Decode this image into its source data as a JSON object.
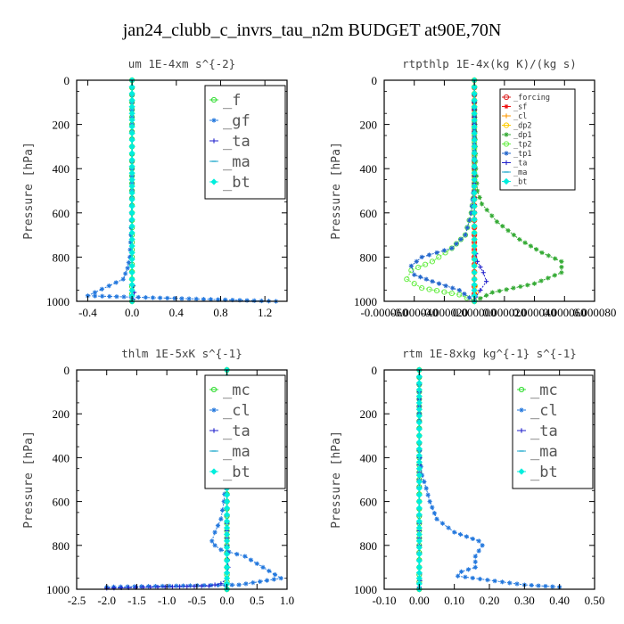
{
  "figure_title": "jan24_clubb_c_invrs_tau_n2m  BUDGET at90E,70N",
  "chart_data": [
    {
      "type": "line",
      "title": "um   1E-4xm s^{-2}",
      "ylabel": "Pressure [hPa]",
      "xlim": [
        -0.5,
        1.4
      ],
      "ylim": [
        1000,
        0
      ],
      "xticks": [
        "-0.4",
        "0.0",
        "0.4",
        "0.8",
        "1.2"
      ],
      "xtick_values": [
        -0.4,
        0.0,
        0.4,
        0.8,
        1.2
      ],
      "yticks": [
        "0",
        "200",
        "400",
        "600",
        "800",
        "1000"
      ],
      "legend_style": "big",
      "series": [
        {
          "name": "_f",
          "color": "#33dd33",
          "marker": "circle",
          "x": [
            0,
            0,
            0,
            0,
            0,
            0,
            0,
            0,
            0,
            0,
            0
          ],
          "y": [
            0,
            100,
            200,
            300,
            400,
            500,
            600,
            700,
            800,
            900,
            1000
          ]
        },
        {
          "name": "_gf",
          "color": "#2277dd",
          "marker": "star",
          "x": [
            0,
            0,
            0,
            0,
            0,
            0,
            -0.01,
            -0.02,
            -0.04,
            -0.08,
            -0.4,
            1.3
          ],
          "y": [
            0,
            100,
            200,
            300,
            400,
            500,
            700,
            800,
            850,
            900,
            975,
            1000
          ]
        },
        {
          "name": "_ta",
          "color": "#2222cc",
          "marker": "plus",
          "x": [
            0,
            0,
            0,
            0,
            0,
            0,
            0,
            0.02,
            0.01,
            0
          ],
          "y": [
            0,
            150,
            300,
            450,
            600,
            750,
            900,
            960,
            990,
            1000
          ]
        },
        {
          "name": "_ma",
          "color": "#22aacc",
          "marker": "dash",
          "x": [
            0,
            0,
            0,
            0,
            0,
            0,
            0,
            0,
            0
          ],
          "y": [
            0,
            150,
            300,
            450,
            600,
            750,
            900,
            950,
            1000
          ]
        },
        {
          "name": "_bt",
          "color": "#00eedd",
          "marker": "diamond",
          "x": [
            0,
            0,
            0,
            0,
            0,
            0,
            0,
            0,
            0
          ],
          "y": [
            0,
            150,
            300,
            450,
            600,
            750,
            900,
            950,
            1000
          ]
        }
      ]
    },
    {
      "type": "line",
      "title": "rtpthlp   1E-4x(kg K)/(kg s)",
      "ylabel": "Pressure [hPa]",
      "xlim": [
        -6e-05,
        8e-05
      ],
      "ylim": [
        1000,
        0
      ],
      "xticks": [
        "-0.000060",
        "-0.000040",
        "-0.000020",
        "0.000000",
        "0.000020",
        "0.000040",
        "0.000060",
        "0.000080"
      ],
      "xtick_values": [
        -6e-05,
        -4e-05,
        -2e-05,
        0,
        2e-05,
        4e-05,
        6e-05,
        8e-05
      ],
      "yticks": [
        "0",
        "200",
        "400",
        "600",
        "800",
        "1000"
      ],
      "legend_style": "small",
      "series": [
        {
          "name": "_forcing",
          "color": "#dd2222",
          "marker": "circle",
          "x": [
            0,
            0,
            0,
            0,
            0,
            0,
            0,
            0,
            0,
            0,
            0
          ],
          "y": [
            0,
            100,
            200,
            300,
            400,
            500,
            600,
            700,
            800,
            900,
            1000
          ]
        },
        {
          "name": "_sf",
          "color": "#ee1111",
          "marker": "star",
          "x": [
            0,
            0,
            0,
            0,
            0,
            0,
            0,
            0,
            0,
            0,
            0
          ],
          "y": [
            0,
            100,
            200,
            300,
            400,
            500,
            600,
            700,
            800,
            900,
            1000
          ]
        },
        {
          "name": "_cl",
          "color": "#ff9900",
          "marker": "plus",
          "x": [
            0,
            0,
            0,
            0,
            0,
            0,
            0,
            0,
            0,
            0
          ],
          "y": [
            0,
            150,
            300,
            450,
            600,
            750,
            900,
            950,
            990,
            1000
          ]
        },
        {
          "name": "_dp2",
          "color": "#ffcc00",
          "marker": "circle",
          "x": [
            0,
            0,
            0,
            0,
            0,
            0,
            0,
            1e-06,
            0
          ],
          "y": [
            0,
            150,
            300,
            450,
            600,
            750,
            900,
            960,
            1000
          ]
        },
        {
          "name": "_dp1",
          "color": "#33aa33",
          "marker": "star",
          "x": [
            0,
            1e-06,
            2e-06,
            5e-06,
            1.5e-05,
            3e-05,
            4.5e-05,
            5.8e-05,
            5.8e-05,
            4e-05,
            1.2e-05,
            0
          ],
          "y": [
            0,
            400,
            500,
            560,
            640,
            720,
            780,
            820,
            870,
            920,
            960,
            1000
          ]
        },
        {
          "name": "_tp2",
          "color": "#66ee44",
          "marker": "circle",
          "x": [
            0,
            0,
            -2e-06,
            -6e-06,
            -1.5e-05,
            -2.8e-05,
            -4.2e-05,
            -4.5e-05,
            -3.5e-05,
            -1e-05,
            0
          ],
          "y": [
            0,
            500,
            600,
            700,
            760,
            820,
            860,
            900,
            940,
            970,
            1000
          ]
        },
        {
          "name": "_tp1",
          "color": "#2266cc",
          "marker": "star",
          "x": [
            0,
            0,
            -2e-06,
            -6e-06,
            -1.5e-05,
            -3.5e-05,
            -4.2e-05,
            -4e-05,
            -2.8e-05,
            -1e-05,
            0
          ],
          "y": [
            0,
            450,
            600,
            700,
            760,
            800,
            840,
            880,
            910,
            950,
            1000
          ]
        },
        {
          "name": "_ta",
          "color": "#2222cc",
          "marker": "plus",
          "x": [
            0,
            0,
            0,
            0,
            2e-06,
            6e-06,
            8e-06,
            4e-06,
            1e-06,
            0
          ],
          "y": [
            0,
            200,
            500,
            750,
            820,
            870,
            910,
            950,
            980,
            1000
          ]
        },
        {
          "name": "_ma",
          "color": "#22aacc",
          "marker": "dash",
          "x": [
            0,
            0,
            0,
            0,
            0,
            0,
            0,
            0,
            0
          ],
          "y": [
            0,
            150,
            300,
            450,
            600,
            750,
            900,
            950,
            1000
          ]
        },
        {
          "name": "_bt",
          "color": "#00eedd",
          "marker": "diamond",
          "x": [
            0,
            0,
            0,
            0,
            0,
            0,
            0,
            0,
            0
          ],
          "y": [
            0,
            150,
            300,
            450,
            600,
            750,
            900,
            950,
            1000
          ]
        }
      ]
    },
    {
      "type": "line",
      "title": "thlm   1E-5xK s^{-1}",
      "ylabel": "Pressure [hPa]",
      "xlim": [
        -2.5,
        1.0
      ],
      "ylim": [
        1000,
        0
      ],
      "xticks": [
        "-2.5",
        "-2.0",
        "-1.5",
        "-1.0",
        "-0.5",
        "0.0",
        "0.5",
        "1.0"
      ],
      "xtick_values": [
        -2.5,
        -2.0,
        -1.5,
        -1.0,
        -0.5,
        0.0,
        0.5,
        1.0
      ],
      "yticks": [
        "0",
        "200",
        "400",
        "600",
        "800",
        "1000"
      ],
      "legend_style": "big",
      "series": [
        {
          "name": "_mc",
          "color": "#33dd33",
          "marker": "circle",
          "x": [
            0,
            0,
            0,
            0,
            0,
            0,
            0,
            0,
            0,
            0,
            0
          ],
          "y": [
            0,
            100,
            200,
            300,
            400,
            500,
            600,
            700,
            800,
            900,
            1000
          ]
        },
        {
          "name": "_cl",
          "color": "#2277dd",
          "marker": "star",
          "x": [
            0,
            0,
            0,
            -0.02,
            -0.05,
            -0.1,
            -0.2,
            -0.25,
            -0.2,
            -0.1,
            0.3,
            0.6,
            0.9,
            0.2,
            -2.0
          ],
          "y": [
            0,
            200,
            400,
            500,
            600,
            680,
            740,
            780,
            800,
            820,
            850,
            900,
            950,
            980,
            990
          ]
        },
        {
          "name": "_ta",
          "color": "#2222cc",
          "marker": "plus",
          "x": [
            0,
            0,
            0,
            0,
            0,
            0.02,
            0,
            -0.1,
            -0.3,
            -2.0
          ],
          "y": [
            0,
            200,
            400,
            600,
            800,
            900,
            950,
            975,
            985,
            995
          ]
        },
        {
          "name": "_ma",
          "color": "#22aacc",
          "marker": "dash",
          "x": [
            0,
            0,
            0,
            0,
            0,
            0,
            0,
            0,
            0
          ],
          "y": [
            0,
            150,
            300,
            450,
            600,
            750,
            900,
            950,
            1000
          ]
        },
        {
          "name": "_bt",
          "color": "#00eedd",
          "marker": "diamond",
          "x": [
            0,
            0,
            0,
            0,
            0,
            0,
            0,
            0,
            0
          ],
          "y": [
            0,
            150,
            300,
            450,
            600,
            750,
            900,
            950,
            1000
          ]
        }
      ]
    },
    {
      "type": "line",
      "title": "rtm   1E-8xkg kg^{-1} s^{-1}",
      "ylabel": "Pressure [hPa]",
      "xlim": [
        -0.1,
        0.5
      ],
      "ylim": [
        1000,
        0
      ],
      "xticks": [
        "-0.10",
        "0.00",
        "0.10",
        "0.20",
        "0.30",
        "0.40",
        "0.50"
      ],
      "xtick_values": [
        -0.1,
        0.0,
        0.1,
        0.2,
        0.3,
        0.4,
        0.5
      ],
      "yticks": [
        "0",
        "200",
        "400",
        "600",
        "800",
        "1000"
      ],
      "legend_style": "big",
      "series": [
        {
          "name": "_mc",
          "color": "#33dd33",
          "marker": "circle",
          "x": [
            0,
            0,
            0,
            0,
            0,
            0,
            0,
            0,
            0,
            0,
            0
          ],
          "y": [
            0,
            100,
            200,
            300,
            400,
            500,
            600,
            700,
            800,
            900,
            1000
          ]
        },
        {
          "name": "_cl",
          "color": "#2277dd",
          "marker": "star",
          "x": [
            0,
            0,
            0.002,
            0.008,
            0.02,
            0.03,
            0.05,
            0.1,
            0.17,
            0.18,
            0.16,
            0.16,
            0.12,
            0.11,
            0.3,
            0.4
          ],
          "y": [
            0,
            300,
            400,
            480,
            540,
            600,
            680,
            740,
            780,
            800,
            850,
            900,
            920,
            940,
            980,
            990
          ]
        },
        {
          "name": "_ta",
          "color": "#2222cc",
          "marker": "plus",
          "x": [
            0,
            0,
            0,
            0,
            0,
            0,
            0.002,
            0,
            0
          ],
          "y": [
            0,
            200,
            400,
            600,
            800,
            900,
            960,
            990,
            1000
          ]
        },
        {
          "name": "_ma",
          "color": "#22aacc",
          "marker": "dash",
          "x": [
            0,
            0,
            0,
            0,
            0,
            0,
            0,
            0,
            0
          ],
          "y": [
            0,
            150,
            300,
            450,
            600,
            750,
            900,
            950,
            1000
          ]
        },
        {
          "name": "_bt",
          "color": "#00eedd",
          "marker": "diamond",
          "x": [
            0,
            0,
            0,
            0,
            0,
            0,
            0,
            0,
            0
          ],
          "y": [
            0,
            150,
            300,
            450,
            600,
            750,
            900,
            950,
            1000
          ]
        }
      ]
    }
  ]
}
